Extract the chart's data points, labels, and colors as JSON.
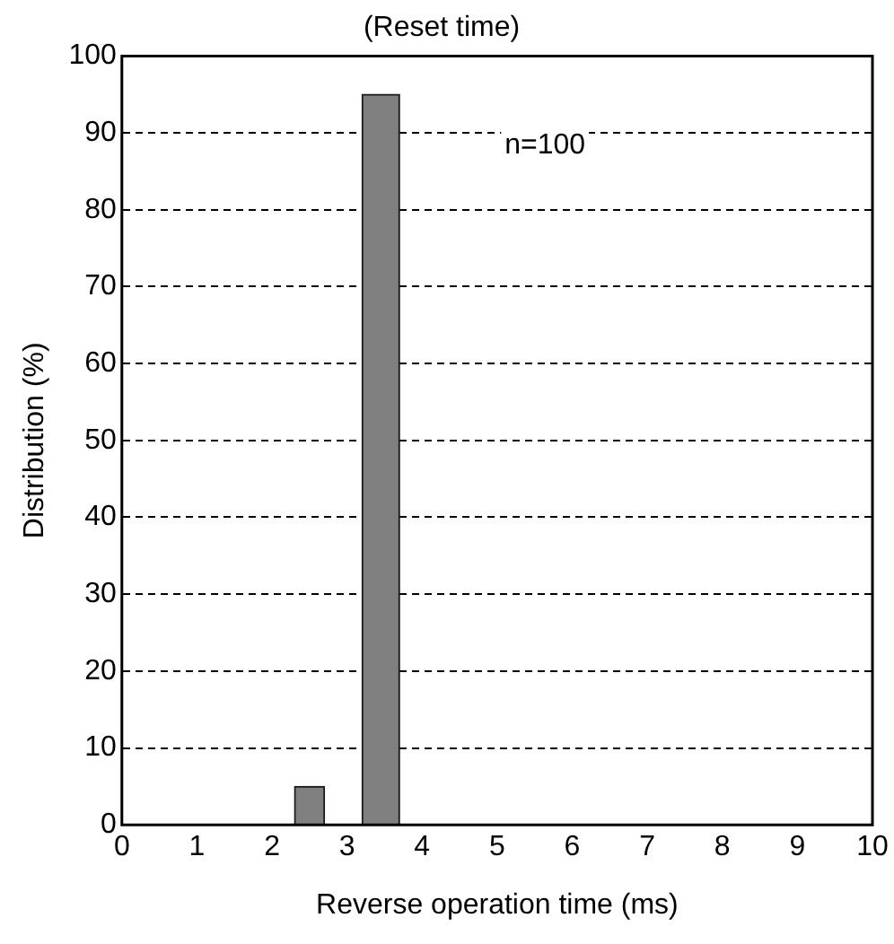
{
  "chart_data": {
    "type": "histogram",
    "title": "(Reset time)",
    "xlabel": "Reverse operation time (ms)",
    "ylabel": "Distribution (%)",
    "bins": [
      2.3,
      2.7,
      3.2,
      3.7
    ],
    "values": [
      5,
      0,
      95
    ],
    "color": "#808080",
    "xlim": [
      0,
      10
    ],
    "xticks": [
      0,
      1,
      2,
      3,
      4,
      5,
      6,
      7,
      8,
      9,
      10
    ],
    "ylim": [
      0,
      100
    ],
    "yticks": [
      0,
      10,
      20,
      30,
      40,
      50,
      60,
      70,
      80,
      90,
      100
    ],
    "grid": "y",
    "legend": false,
    "annotations": [
      "n=100"
    ]
  }
}
